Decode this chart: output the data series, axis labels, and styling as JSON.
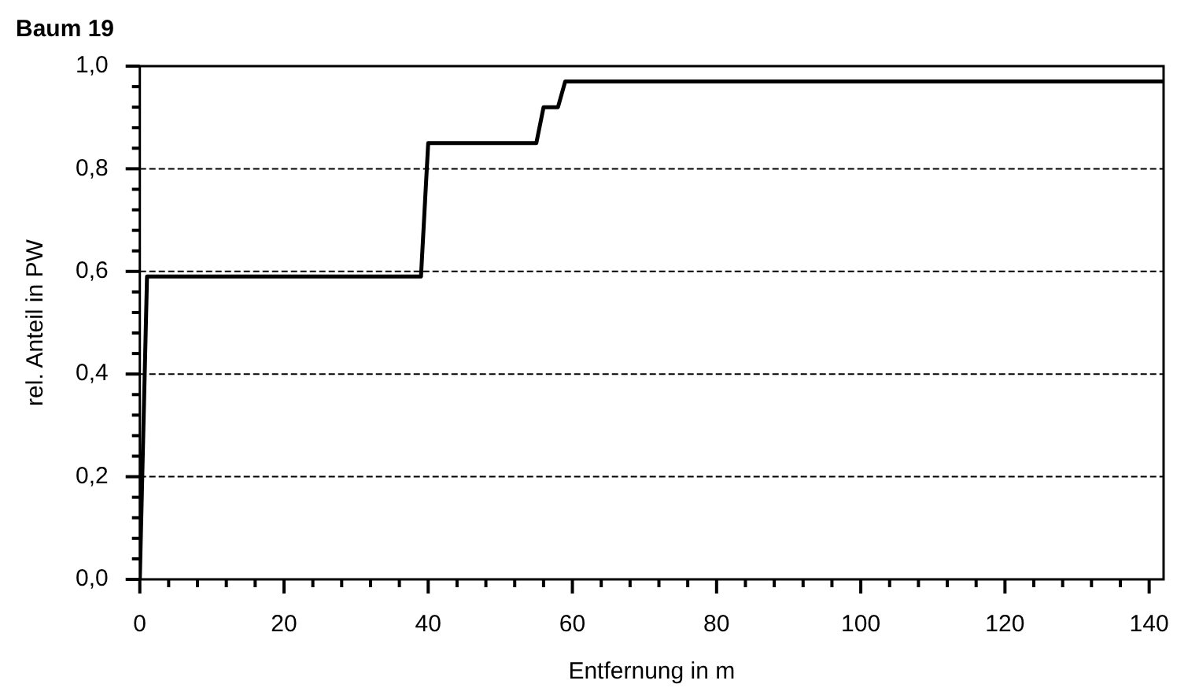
{
  "chart_data": {
    "type": "line",
    "title": "Baum 19",
    "xlabel": "Entfernung in m",
    "ylabel": "rel. Anteil in PW",
    "series": [
      {
        "color": "#000000",
        "x": [
          0,
          1,
          39,
          40,
          55,
          56,
          58,
          59,
          142
        ],
        "values": [
          0,
          0.59,
          0.59,
          0.85,
          0.85,
          0.92,
          0.92,
          0.97,
          0.97
        ]
      }
    ],
    "xlim": [
      0,
      142
    ],
    "xticks": [
      0,
      {
        "value": 4,
        "label": null
      },
      {
        "value": 8,
        "label": null
      },
      {
        "value": 12,
        "label": null
      },
      {
        "value": 16,
        "label": null
      },
      20,
      {
        "value": 24,
        "label": null
      },
      {
        "value": 28,
        "label": null
      },
      {
        "value": 32,
        "label": null
      },
      {
        "value": 36,
        "label": null
      },
      40,
      {
        "value": 44,
        "label": null
      },
      {
        "value": 48,
        "label": null
      },
      {
        "value": 52,
        "label": null
      },
      {
        "value": 56,
        "label": null
      },
      60,
      {
        "value": 64,
        "label": null
      },
      {
        "value": 68,
        "label": null
      },
      {
        "value": 72,
        "label": null
      },
      {
        "value": 76,
        "label": null
      },
      80,
      {
        "value": 84,
        "label": null
      },
      {
        "value": 88,
        "label": null
      },
      {
        "value": 92,
        "label": null
      },
      {
        "value": 96,
        "label": null
      },
      100,
      {
        "value": 104,
        "label": null
      },
      {
        "value": 108,
        "label": null
      },
      {
        "value": 112,
        "label": null
      },
      {
        "value": 116,
        "label": null
      },
      120,
      {
        "value": 124,
        "label": null
      },
      {
        "value": 128,
        "label": null
      },
      {
        "value": 132,
        "label": null
      },
      {
        "value": 136,
        "label": null
      },
      140
    ],
    "ylim": [
      0,
      1
    ],
    "yticks": [
      {
        "value": 0,
        "label": "0,0"
      },
      {
        "value": 0.04,
        "label": null
      },
      {
        "value": 0.08,
        "label": null
      },
      {
        "value": 0.12,
        "label": null
      },
      {
        "value": 0.16,
        "label": null
      },
      {
        "value": 0.2,
        "label": "0,2"
      },
      {
        "value": 0.24,
        "label": null
      },
      {
        "value": 0.28,
        "label": null
      },
      {
        "value": 0.32,
        "label": null
      },
      {
        "value": 0.36,
        "label": null
      },
      {
        "value": 0.4,
        "label": "0,4"
      },
      {
        "value": 0.44,
        "label": null
      },
      {
        "value": 0.48,
        "label": null
      },
      {
        "value": 0.52,
        "label": null
      },
      {
        "value": 0.56,
        "label": null
      },
      {
        "value": 0.6,
        "label": "0,6"
      },
      {
        "value": 0.64,
        "label": null
      },
      {
        "value": 0.68,
        "label": null
      },
      {
        "value": 0.72,
        "label": null
      },
      {
        "value": 0.76,
        "label": null
      },
      {
        "value": 0.8,
        "label": "0,8"
      },
      {
        "value": 0.84,
        "label": null
      },
      {
        "value": 0.88,
        "label": null
      },
      {
        "value": 0.92,
        "label": null
      },
      {
        "value": 0.96,
        "label": null
      },
      {
        "value": 1,
        "label": "1,0"
      }
    ],
    "grid": "y",
    "marker": "none",
    "line_style": "solid",
    "legend": false
  }
}
